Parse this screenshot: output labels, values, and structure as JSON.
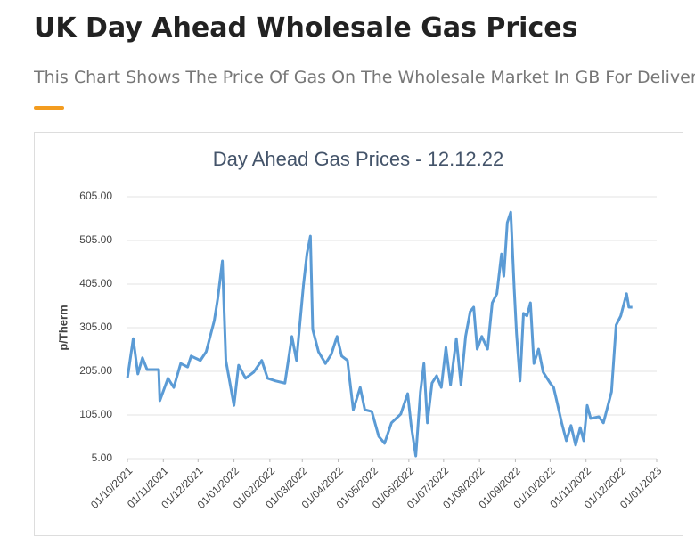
{
  "header": {
    "title": "UK Day Ahead Wholesale Gas Prices",
    "subtitle": "This Chart Shows The Price Of Gas On The Wholesale Market In GB For Delivery The Next Day"
  },
  "chart_data": {
    "type": "line",
    "title": "Day Ahead Gas Prices - 12.12.22",
    "y_label": "p/Therm",
    "x": [
      "01/10/2021",
      "06/10/2021",
      "10/10/2021",
      "14/10/2021",
      "18/10/2021",
      "28/10/2021",
      "29/10/2021",
      "05/11/2021",
      "10/11/2021",
      "16/11/2021",
      "22/11/2021",
      "25/11/2021",
      "03/12/2021",
      "08/12/2021",
      "15/12/2021",
      "18/12/2021",
      "22/12/2021",
      "25/12/2021",
      "01/01/2022",
      "05/01/2022",
      "11/01/2022",
      "18/01/2022",
      "25/01/2022",
      "30/01/2022",
      "06/02/2022",
      "14/02/2022",
      "20/02/2022",
      "24/02/2022",
      "02/03/2022",
      "05/03/2022",
      "08/03/2022",
      "10/03/2022",
      "15/03/2022",
      "21/03/2022",
      "26/03/2022",
      "31/03/2022",
      "04/04/2022",
      "09/04/2022",
      "14/04/2022",
      "20/04/2022",
      "24/04/2022",
      "30/04/2022",
      "06/05/2022",
      "11/05/2022",
      "17/05/2022",
      "25/05/2022",
      "31/05/2022",
      "03/06/2022",
      "07/06/2022",
      "11/06/2022",
      "14/06/2022",
      "17/06/2022",
      "21/06/2022",
      "25/06/2022",
      "29/06/2022",
      "03/07/2022",
      "07/07/2022",
      "12/07/2022",
      "16/07/2022",
      "20/07/2022",
      "24/07/2022",
      "27/07/2022",
      "30/07/2022",
      "03/08/2022",
      "08/08/2022",
      "12/08/2022",
      "16/08/2022",
      "20/08/2022",
      "22/08/2022",
      "25/08/2022",
      "28/08/2022",
      "31/08/2022",
      "02/09/2022",
      "05/09/2022",
      "08/09/2022",
      "11/09/2022",
      "14/09/2022",
      "17/09/2022",
      "21/09/2022",
      "25/09/2022",
      "01/10/2022",
      "04/10/2022",
      "07/10/2022",
      "11/10/2022",
      "15/10/2022",
      "19/10/2022",
      "23/10/2022",
      "27/10/2022",
      "30/10/2022",
      "02/11/2022",
      "05/11/2022",
      "12/11/2022",
      "16/11/2022",
      "18/11/2022",
      "23/11/2022",
      "27/11/2022",
      "01/12/2022",
      "06/12/2022",
      "08/12/2022",
      "11/12/2022"
    ],
    "series": [
      {
        "name": "Day Ahead",
        "color": "#5b9bd5",
        "values": [
          189,
          280,
          199,
          236,
          209,
          209,
          138,
          189,
          168,
          223,
          215,
          240,
          230,
          250,
          321,
          372,
          458,
          230,
          127,
          219,
          189,
          203,
          230,
          189,
          183,
          178,
          285,
          230,
          403,
          474,
          515,
          301,
          250,
          223,
          244,
          285,
          240,
          230,
          117,
          168,
          117,
          113,
          56,
          40,
          87,
          107,
          154,
          81,
          11,
          158,
          223,
          87,
          178,
          195,
          168,
          260,
          174,
          280,
          174,
          285,
          342,
          352,
          256,
          285,
          256,
          362,
          383,
          474,
          423,
          546,
          570,
          393,
          291,
          183,
          338,
          332,
          362,
          223,
          256,
          203,
          178,
          168,
          134,
          87,
          46,
          81,
          36,
          76,
          46,
          127,
          97,
          101,
          87,
          107,
          158,
          311,
          332,
          383,
          352,
          352
        ]
      }
    ],
    "xlim": [
      "01/10/2021",
      "01/01/2023"
    ],
    "xticks": [
      "01/10/2021",
      "01/11/2021",
      "01/12/2021",
      "01/01/2022",
      "01/02/2022",
      "01/03/2022",
      "01/04/2022",
      "01/05/2022",
      "01/06/2022",
      "01/07/2022",
      "01/08/2022",
      "01/09/2022",
      "01/10/2022",
      "01/11/2022",
      "01/12/2022",
      "01/01/2023"
    ],
    "ylim": [
      5,
      605
    ],
    "yticks": [
      {
        "value": 5,
        "label": "5.00"
      },
      {
        "value": 105,
        "label": "105.00"
      },
      {
        "value": 205,
        "label": "205.00"
      },
      {
        "value": 305,
        "label": "305.00"
      },
      {
        "value": 405,
        "label": "405.00"
      },
      {
        "value": 505,
        "label": "505.00"
      },
      {
        "value": 605,
        "label": "605.00"
      }
    ],
    "grid": true
  }
}
